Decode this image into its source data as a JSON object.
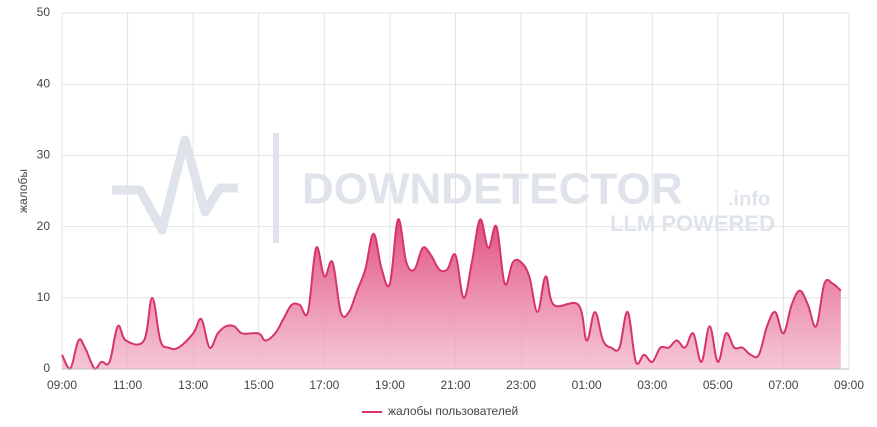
{
  "chart_data": {
    "type": "area",
    "y_label": "жалобы",
    "watermark": {
      "brand": "DOWNDETECTOR",
      "suffix": ".info",
      "tagline": "LLM POWERED"
    },
    "x": [
      0,
      0.25,
      0.5,
      0.7,
      1.0,
      1.2,
      1.45,
      1.7,
      1.95,
      2.5,
      2.75,
      3.0,
      3.25,
      3.55,
      4.0,
      4.25,
      4.5,
      4.75,
      5.0,
      5.25,
      5.5,
      6.0,
      6.2,
      6.5,
      6.75,
      7.0,
      7.25,
      7.5,
      7.75,
      8.0,
      8.25,
      8.5,
      8.75,
      9.0,
      9.25,
      9.5,
      9.75,
      10.0,
      10.25,
      10.5,
      10.75,
      11.0,
      11.25,
      11.5,
      11.75,
      12.0,
      12.25,
      12.5,
      12.75,
      13.0,
      13.25,
      13.5,
      13.75,
      14.0,
      14.25,
      14.5,
      14.75,
      15.0,
      15.75,
      16.0,
      16.25,
      16.5,
      16.75,
      17.0,
      17.25,
      17.5,
      17.75,
      18.0,
      18.25,
      18.5,
      18.75,
      19.0,
      19.25,
      19.5,
      19.75,
      20.0,
      20.25,
      20.5,
      20.75,
      21.0,
      21.25,
      21.5,
      21.75,
      22.0,
      22.25,
      22.5,
      22.75,
      23.0,
      23.25,
      23.5,
      23.75
    ],
    "series": [
      {
        "name": "жалобы пользователей",
        "color": "#d6336f",
        "values": [
          2,
          0,
          4,
          3,
          0,
          1,
          1,
          6,
          4,
          4,
          10,
          4,
          3,
          3,
          5,
          7,
          3,
          5,
          6,
          6,
          5,
          5,
          4,
          5,
          7,
          9,
          9,
          8,
          17,
          13,
          15,
          8,
          8,
          11,
          14,
          19,
          14,
          12,
          21,
          15,
          14,
          17,
          16,
          14,
          14,
          16,
          10,
          15,
          21,
          17,
          20,
          12,
          15,
          15,
          13,
          8,
          13,
          9,
          9,
          4,
          8,
          4,
          3,
          3,
          8,
          1,
          2,
          1,
          3,
          3,
          4,
          3,
          5,
          1,
          6,
          1,
          5,
          3,
          3,
          2,
          2,
          6,
          8,
          5,
          9,
          11,
          9,
          6,
          12,
          12,
          11
        ]
      }
    ],
    "xlim": [
      0,
      24
    ],
    "xticks": [
      {
        "value": 0,
        "label": "09:00"
      },
      {
        "value": 2,
        "label": "11:00"
      },
      {
        "value": 4,
        "label": "13:00"
      },
      {
        "value": 6,
        "label": "15:00"
      },
      {
        "value": 8,
        "label": "17:00"
      },
      {
        "value": 10,
        "label": "19:00"
      },
      {
        "value": 12,
        "label": "21:00"
      },
      {
        "value": 14,
        "label": "23:00"
      },
      {
        "value": 16,
        "label": "01:00"
      },
      {
        "value": 18,
        "label": "03:00"
      },
      {
        "value": 20,
        "label": "05:00"
      },
      {
        "value": 22,
        "label": "07:00"
      },
      {
        "value": 24,
        "label": "09:00"
      }
    ],
    "ylim": [
      0,
      50
    ],
    "yticks": [
      0,
      10,
      20,
      30,
      40,
      50
    ],
    "grid": true,
    "legend": "bottom"
  }
}
